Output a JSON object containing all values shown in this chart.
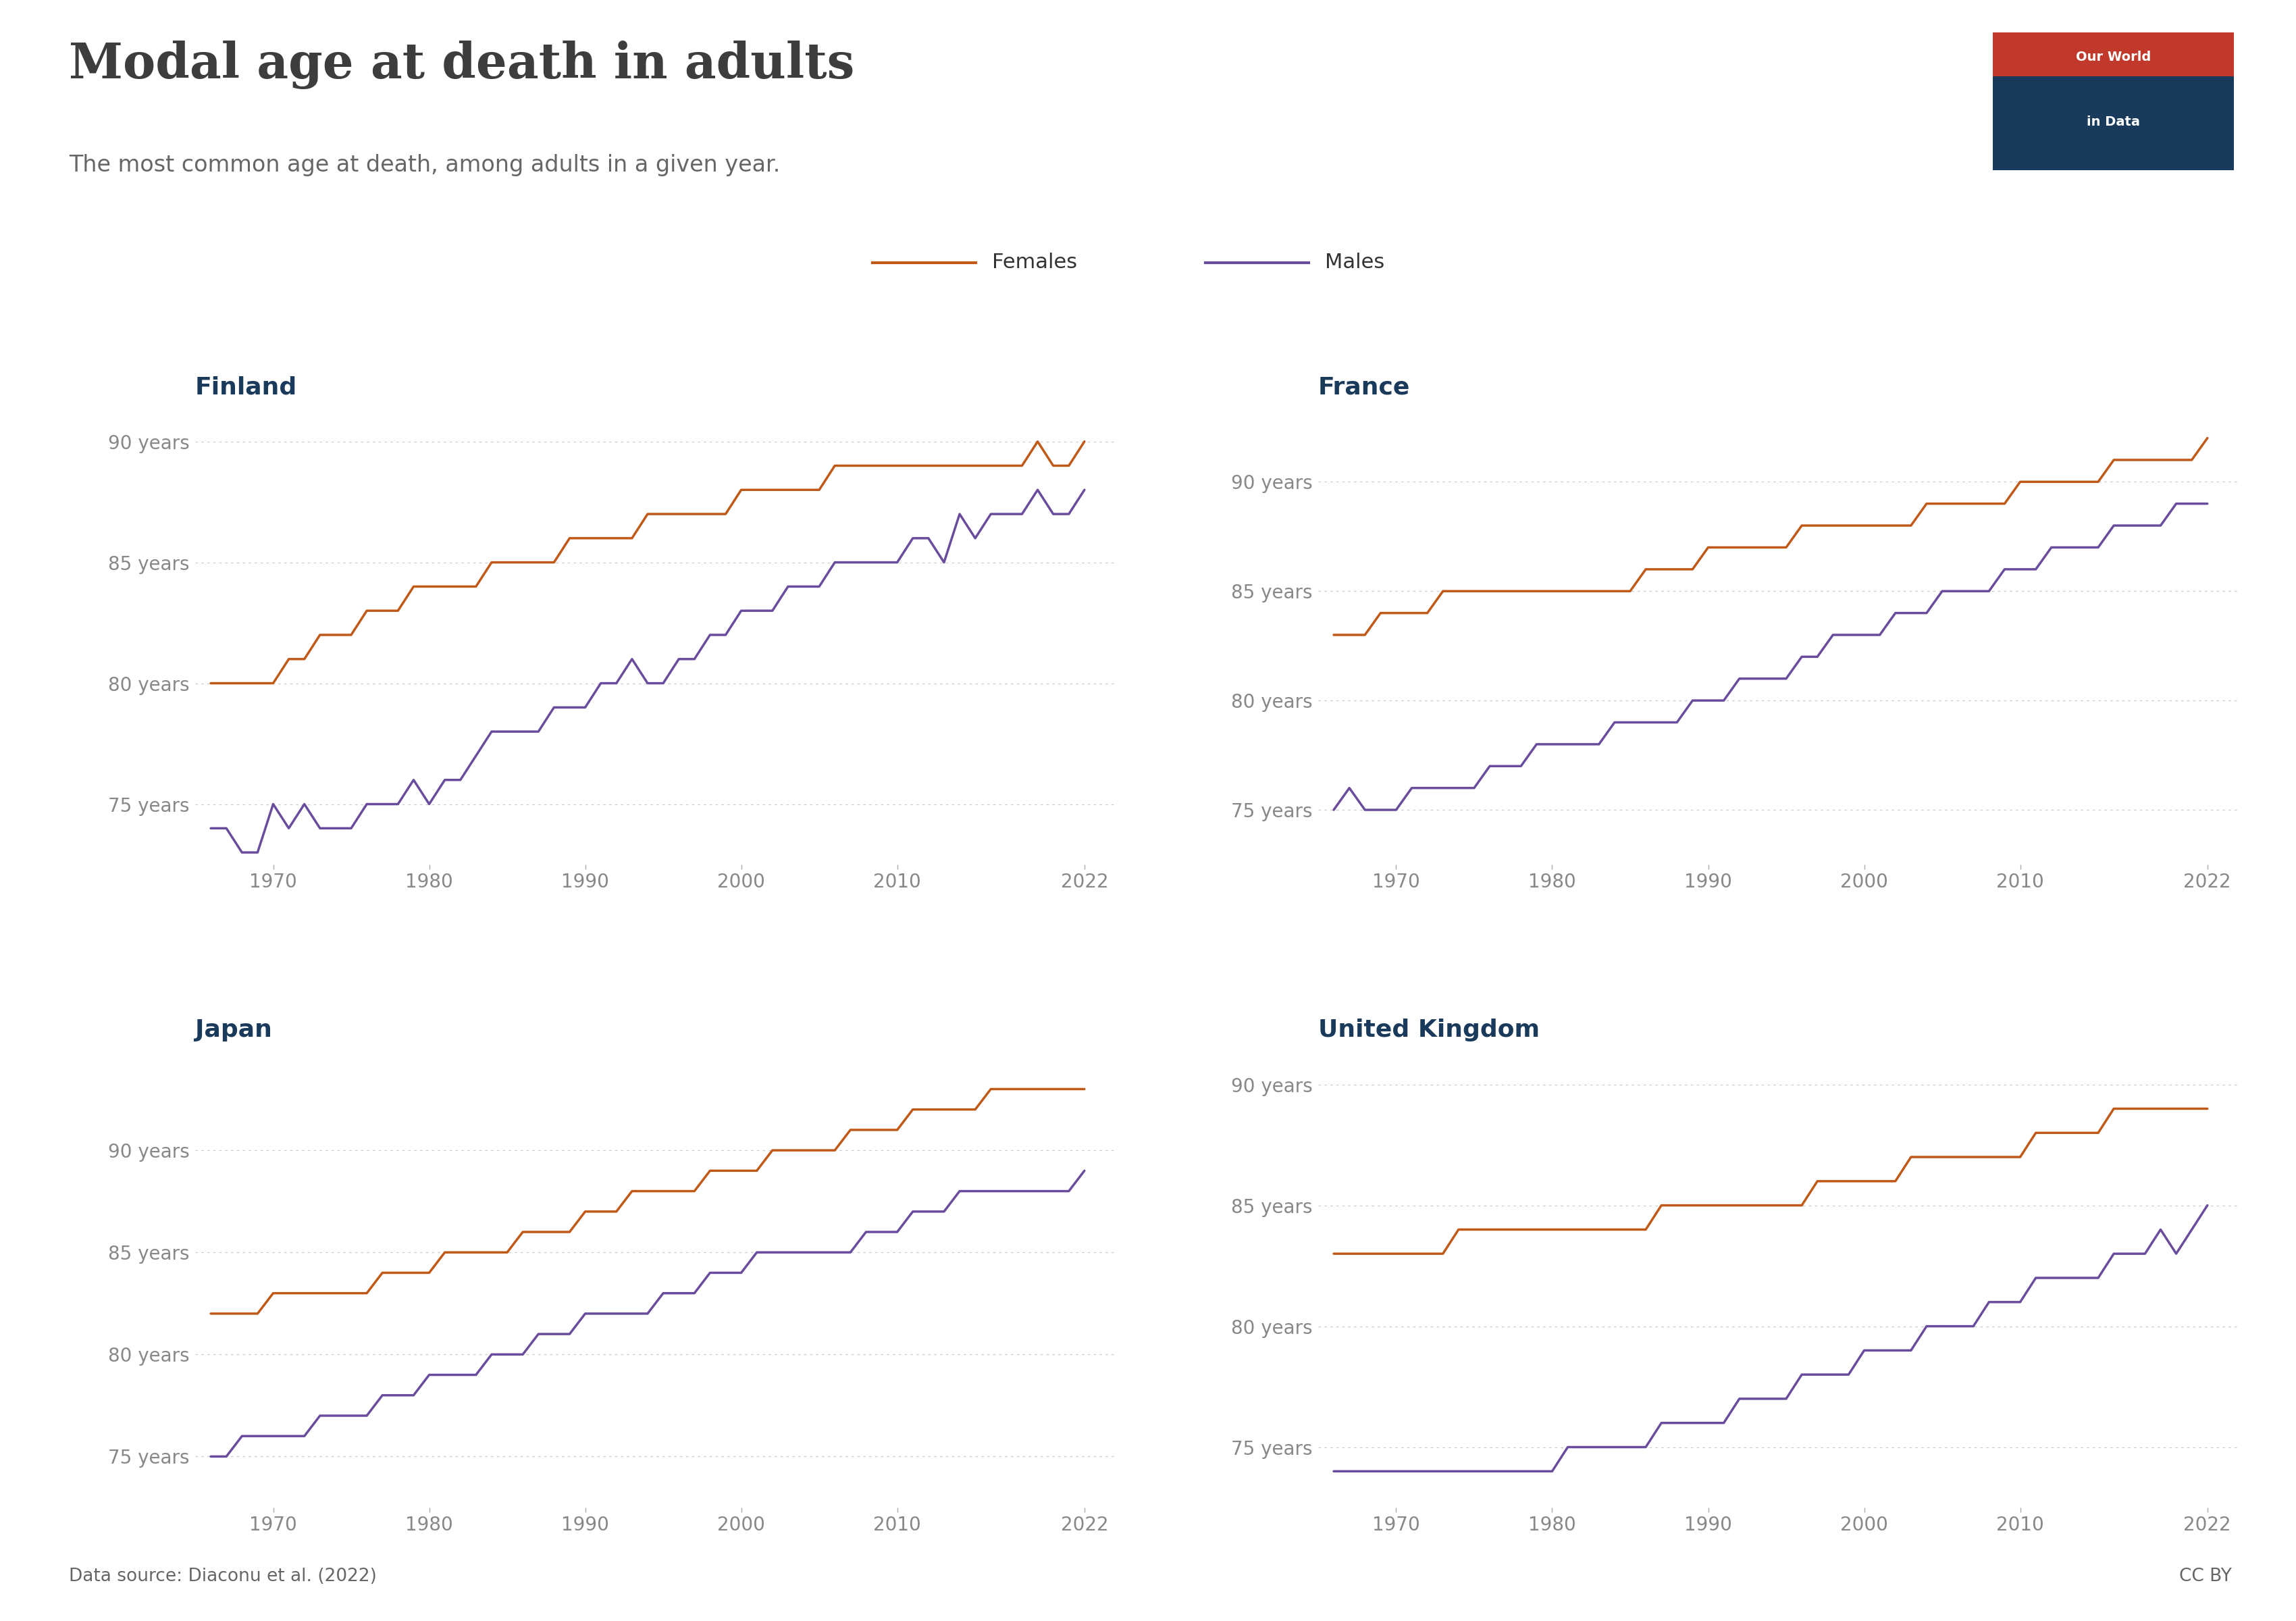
{
  "title": "Modal age at death in adults",
  "subtitle": "The most common age at death, among adults in a given year.",
  "source": "Data source: Diaconu et al. (2022)",
  "cc": "CC BY",
  "female_color": "#C05917",
  "male_color": "#6A4C9C",
  "grid_color": "#BBBBBB",
  "title_color": "#3D3D3D",
  "subtitle_color": "#666666",
  "country_title_color": "#1A3A5C",
  "background_color": "#FFFFFF",
  "owid_bg": "#1A3A5C",
  "owid_red": "#C0392B",
  "finland_female_years": [
    1966,
    1967,
    1968,
    1969,
    1970,
    1971,
    1972,
    1973,
    1974,
    1975,
    1976,
    1977,
    1978,
    1979,
    1980,
    1981,
    1982,
    1983,
    1984,
    1985,
    1986,
    1987,
    1988,
    1989,
    1990,
    1991,
    1992,
    1993,
    1994,
    1995,
    1996,
    1997,
    1998,
    1999,
    2000,
    2001,
    2002,
    2003,
    2004,
    2005,
    2006,
    2007,
    2008,
    2009,
    2010,
    2011,
    2012,
    2013,
    2014,
    2015,
    2016,
    2017,
    2018,
    2019,
    2020,
    2021,
    2022
  ],
  "finland_female_vals": [
    80,
    80,
    80,
    80,
    80,
    81,
    81,
    82,
    82,
    82,
    83,
    83,
    83,
    84,
    84,
    84,
    84,
    84,
    85,
    85,
    85,
    85,
    85,
    86,
    86,
    86,
    86,
    86,
    87,
    87,
    87,
    87,
    87,
    87,
    88,
    88,
    88,
    88,
    88,
    88,
    89,
    89,
    89,
    89,
    89,
    89,
    89,
    89,
    89,
    89,
    89,
    89,
    89,
    90,
    89,
    89,
    90
  ],
  "finland_male_years": [
    1966,
    1967,
    1968,
    1969,
    1970,
    1971,
    1972,
    1973,
    1974,
    1975,
    1976,
    1977,
    1978,
    1979,
    1980,
    1981,
    1982,
    1983,
    1984,
    1985,
    1986,
    1987,
    1988,
    1989,
    1990,
    1991,
    1992,
    1993,
    1994,
    1995,
    1996,
    1997,
    1998,
    1999,
    2000,
    2001,
    2002,
    2003,
    2004,
    2005,
    2006,
    2007,
    2008,
    2009,
    2010,
    2011,
    2012,
    2013,
    2014,
    2015,
    2016,
    2017,
    2018,
    2019,
    2020,
    2021,
    2022
  ],
  "finland_male_vals": [
    74,
    74,
    73,
    73,
    75,
    74,
    75,
    74,
    74,
    74,
    75,
    75,
    75,
    76,
    75,
    76,
    76,
    77,
    78,
    78,
    78,
    78,
    79,
    79,
    79,
    80,
    80,
    81,
    80,
    80,
    81,
    81,
    82,
    82,
    83,
    83,
    83,
    84,
    84,
    84,
    85,
    85,
    85,
    85,
    85,
    86,
    86,
    85,
    87,
    86,
    87,
    87,
    87,
    88,
    87,
    87,
    88
  ],
  "france_female_years": [
    1966,
    1967,
    1968,
    1969,
    1970,
    1971,
    1972,
    1973,
    1974,
    1975,
    1976,
    1977,
    1978,
    1979,
    1980,
    1981,
    1982,
    1983,
    1984,
    1985,
    1986,
    1987,
    1988,
    1989,
    1990,
    1991,
    1992,
    1993,
    1994,
    1995,
    1996,
    1997,
    1998,
    1999,
    2000,
    2001,
    2002,
    2003,
    2004,
    2005,
    2006,
    2007,
    2008,
    2009,
    2010,
    2011,
    2012,
    2013,
    2014,
    2015,
    2016,
    2017,
    2018,
    2019,
    2020,
    2021,
    2022
  ],
  "france_female_vals": [
    83,
    83,
    83,
    84,
    84,
    84,
    84,
    85,
    85,
    85,
    85,
    85,
    85,
    85,
    85,
    85,
    85,
    85,
    85,
    85,
    86,
    86,
    86,
    86,
    87,
    87,
    87,
    87,
    87,
    87,
    88,
    88,
    88,
    88,
    88,
    88,
    88,
    88,
    89,
    89,
    89,
    89,
    89,
    89,
    90,
    90,
    90,
    90,
    90,
    90,
    91,
    91,
    91,
    91,
    91,
    91,
    92
  ],
  "france_male_years": [
    1966,
    1967,
    1968,
    1969,
    1970,
    1971,
    1972,
    1973,
    1974,
    1975,
    1976,
    1977,
    1978,
    1979,
    1980,
    1981,
    1982,
    1983,
    1984,
    1985,
    1986,
    1987,
    1988,
    1989,
    1990,
    1991,
    1992,
    1993,
    1994,
    1995,
    1996,
    1997,
    1998,
    1999,
    2000,
    2001,
    2002,
    2003,
    2004,
    2005,
    2006,
    2007,
    2008,
    2009,
    2010,
    2011,
    2012,
    2013,
    2014,
    2015,
    2016,
    2017,
    2018,
    2019,
    2020,
    2021,
    2022
  ],
  "france_male_vals": [
    75,
    76,
    75,
    75,
    75,
    76,
    76,
    76,
    76,
    76,
    77,
    77,
    77,
    78,
    78,
    78,
    78,
    78,
    79,
    79,
    79,
    79,
    79,
    80,
    80,
    80,
    81,
    81,
    81,
    81,
    82,
    82,
    83,
    83,
    83,
    83,
    84,
    84,
    84,
    85,
    85,
    85,
    85,
    86,
    86,
    86,
    87,
    87,
    87,
    87,
    88,
    88,
    88,
    88,
    89,
    89,
    89
  ],
  "japan_female_years": [
    1966,
    1967,
    1968,
    1969,
    1970,
    1971,
    1972,
    1973,
    1974,
    1975,
    1976,
    1977,
    1978,
    1979,
    1980,
    1981,
    1982,
    1983,
    1984,
    1985,
    1986,
    1987,
    1988,
    1989,
    1990,
    1991,
    1992,
    1993,
    1994,
    1995,
    1996,
    1997,
    1998,
    1999,
    2000,
    2001,
    2002,
    2003,
    2004,
    2005,
    2006,
    2007,
    2008,
    2009,
    2010,
    2011,
    2012,
    2013,
    2014,
    2015,
    2016,
    2017,
    2018,
    2019,
    2020,
    2021,
    2022
  ],
  "japan_female_vals": [
    82,
    82,
    82,
    82,
    83,
    83,
    83,
    83,
    83,
    83,
    83,
    84,
    84,
    84,
    84,
    85,
    85,
    85,
    85,
    85,
    86,
    86,
    86,
    86,
    87,
    87,
    87,
    88,
    88,
    88,
    88,
    88,
    89,
    89,
    89,
    89,
    90,
    90,
    90,
    90,
    90,
    91,
    91,
    91,
    91,
    92,
    92,
    92,
    92,
    92,
    93,
    93,
    93,
    93,
    93,
    93,
    93
  ],
  "japan_male_years": [
    1966,
    1967,
    1968,
    1969,
    1970,
    1971,
    1972,
    1973,
    1974,
    1975,
    1976,
    1977,
    1978,
    1979,
    1980,
    1981,
    1982,
    1983,
    1984,
    1985,
    1986,
    1987,
    1988,
    1989,
    1990,
    1991,
    1992,
    1993,
    1994,
    1995,
    1996,
    1997,
    1998,
    1999,
    2000,
    2001,
    2002,
    2003,
    2004,
    2005,
    2006,
    2007,
    2008,
    2009,
    2010,
    2011,
    2012,
    2013,
    2014,
    2015,
    2016,
    2017,
    2018,
    2019,
    2020,
    2021,
    2022
  ],
  "japan_male_vals": [
    75,
    75,
    76,
    76,
    76,
    76,
    76,
    77,
    77,
    77,
    77,
    78,
    78,
    78,
    79,
    79,
    79,
    79,
    80,
    80,
    80,
    81,
    81,
    81,
    82,
    82,
    82,
    82,
    82,
    83,
    83,
    83,
    84,
    84,
    84,
    85,
    85,
    85,
    85,
    85,
    85,
    85,
    86,
    86,
    86,
    87,
    87,
    87,
    88,
    88,
    88,
    88,
    88,
    88,
    88,
    88,
    89
  ],
  "uk_female_years": [
    1966,
    1967,
    1968,
    1969,
    1970,
    1971,
    1972,
    1973,
    1974,
    1975,
    1976,
    1977,
    1978,
    1979,
    1980,
    1981,
    1982,
    1983,
    1984,
    1985,
    1986,
    1987,
    1988,
    1989,
    1990,
    1991,
    1992,
    1993,
    1994,
    1995,
    1996,
    1997,
    1998,
    1999,
    2000,
    2001,
    2002,
    2003,
    2004,
    2005,
    2006,
    2007,
    2008,
    2009,
    2010,
    2011,
    2012,
    2013,
    2014,
    2015,
    2016,
    2017,
    2018,
    2019,
    2020,
    2021,
    2022
  ],
  "uk_female_vals": [
    83,
    83,
    83,
    83,
    83,
    83,
    83,
    83,
    84,
    84,
    84,
    84,
    84,
    84,
    84,
    84,
    84,
    84,
    84,
    84,
    84,
    85,
    85,
    85,
    85,
    85,
    85,
    85,
    85,
    85,
    85,
    86,
    86,
    86,
    86,
    86,
    86,
    87,
    87,
    87,
    87,
    87,
    87,
    87,
    87,
    88,
    88,
    88,
    88,
    88,
    89,
    89,
    89,
    89,
    89,
    89,
    89
  ],
  "uk_male_years": [
    1966,
    1967,
    1968,
    1969,
    1970,
    1971,
    1972,
    1973,
    1974,
    1975,
    1976,
    1977,
    1978,
    1979,
    1980,
    1981,
    1982,
    1983,
    1984,
    1985,
    1986,
    1987,
    1988,
    1989,
    1990,
    1991,
    1992,
    1993,
    1994,
    1995,
    1996,
    1997,
    1998,
    1999,
    2000,
    2001,
    2002,
    2003,
    2004,
    2005,
    2006,
    2007,
    2008,
    2009,
    2010,
    2011,
    2012,
    2013,
    2014,
    2015,
    2016,
    2017,
    2018,
    2019,
    2020,
    2021,
    2022
  ],
  "uk_male_vals": [
    74,
    74,
    74,
    74,
    74,
    74,
    74,
    74,
    74,
    74,
    74,
    74,
    74,
    74,
    74,
    75,
    75,
    75,
    75,
    75,
    75,
    76,
    76,
    76,
    76,
    76,
    77,
    77,
    77,
    77,
    78,
    78,
    78,
    78,
    79,
    79,
    79,
    79,
    80,
    80,
    80,
    80,
    81,
    81,
    81,
    82,
    82,
    82,
    82,
    82,
    83,
    83,
    83,
    84,
    83,
    84,
    85
  ]
}
